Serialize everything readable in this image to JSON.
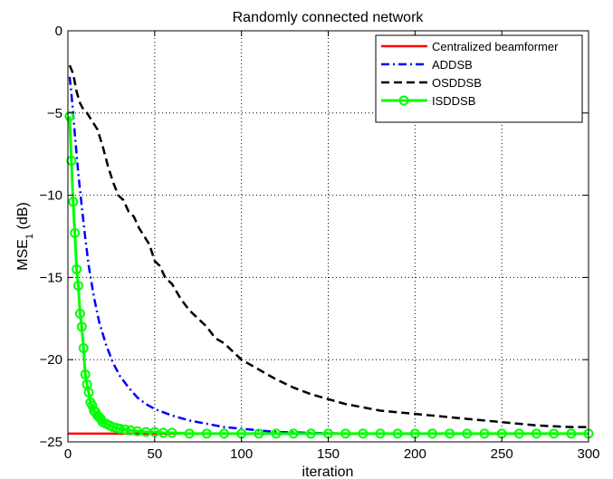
{
  "chart_data": {
    "type": "line",
    "title": "Randomly connected network",
    "xlabel": "iteration",
    "ylabel": "MSE",
    "ylabel_subscript": "1",
    "ylabel_unit": " (dB)",
    "xlim": [
      0,
      300
    ],
    "ylim": [
      -25,
      0
    ],
    "xticks": [
      0,
      50,
      100,
      150,
      200,
      250,
      300
    ],
    "yticks": [
      0,
      -5,
      -10,
      -15,
      -20,
      -25
    ],
    "xtick_labels": [
      "0",
      "50",
      "100",
      "150",
      "200",
      "250",
      "300"
    ],
    "ytick_labels": [
      "0",
      "−5",
      "−10",
      "−15",
      "−20",
      "−25"
    ],
    "grid": true,
    "legend_position": "top-right",
    "series": [
      {
        "name": "Centralized beamformer",
        "color": "#ff0000",
        "style": "solid",
        "x": [
          0,
          300
        ],
        "y": [
          -24.5,
          -24.5
        ]
      },
      {
        "name": "ADDSB",
        "color": "#0000ff",
        "style": "dashdot",
        "x": [
          1,
          2,
          3,
          4,
          5,
          6,
          8,
          10,
          12,
          15,
          18,
          22,
          26,
          30,
          35,
          40,
          45,
          50,
          60,
          70,
          80,
          90,
          100,
          110,
          120,
          140,
          160,
          200,
          250,
          300
        ],
        "y": [
          -2.8,
          -3.8,
          -5.0,
          -6.3,
          -7.5,
          -8.7,
          -10.7,
          -12.6,
          -14.3,
          -16.2,
          -17.7,
          -19.1,
          -20.2,
          -21.0,
          -21.7,
          -22.3,
          -22.7,
          -23.0,
          -23.4,
          -23.7,
          -23.9,
          -24.1,
          -24.2,
          -24.3,
          -24.4,
          -24.45,
          -24.5,
          -24.5,
          -24.5,
          -24.5
        ]
      },
      {
        "name": "OSDDSB",
        "color": "#000000",
        "style": "dashed",
        "x": [
          1,
          3,
          5,
          7,
          9,
          11,
          14,
          17,
          20,
          23,
          26,
          29,
          32,
          35,
          38,
          41,
          44,
          47,
          50,
          53,
          56,
          60,
          65,
          70,
          75,
          80,
          85,
          90,
          95,
          100,
          110,
          120,
          130,
          140,
          150,
          160,
          170,
          180,
          190,
          200,
          210,
          220,
          230,
          240,
          250,
          260,
          270,
          280,
          290,
          300
        ],
        "y": [
          -2.1,
          -2.6,
          -3.7,
          -4.4,
          -4.8,
          -5.0,
          -5.5,
          -6.0,
          -7.0,
          -8.2,
          -9.2,
          -10.0,
          -10.3,
          -11.0,
          -11.3,
          -12.0,
          -12.5,
          -13.0,
          -14.0,
          -14.3,
          -15.0,
          -15.4,
          -16.3,
          -17.0,
          -17.5,
          -18.0,
          -18.7,
          -19.0,
          -19.5,
          -20.0,
          -20.6,
          -21.2,
          -21.7,
          -22.1,
          -22.4,
          -22.7,
          -22.9,
          -23.1,
          -23.2,
          -23.3,
          -23.4,
          -23.5,
          -23.6,
          -23.7,
          -23.8,
          -23.9,
          -24.0,
          -24.05,
          -24.1,
          -24.1
        ]
      },
      {
        "name": "ISDDSB",
        "color": "#00ff00",
        "style": "solid-circle",
        "x": [
          1,
          2,
          3,
          4,
          5,
          6,
          7,
          8,
          9,
          10,
          11,
          12,
          13,
          14,
          15,
          16,
          17,
          18,
          19,
          20,
          22,
          24,
          26,
          28,
          30,
          33,
          36,
          40,
          45,
          50,
          55,
          60,
          70,
          80,
          90,
          100,
          110,
          120,
          130,
          140,
          150,
          160,
          170,
          180,
          190,
          200,
          210,
          220,
          230,
          240,
          250,
          260,
          270,
          280,
          290,
          300
        ],
        "y": [
          -5.2,
          -7.9,
          -10.4,
          -12.3,
          -14.5,
          -15.5,
          -17.2,
          -18.0,
          -19.3,
          -20.9,
          -21.5,
          -22.0,
          -22.6,
          -22.8,
          -23.1,
          -23.2,
          -23.4,
          -23.5,
          -23.6,
          -23.8,
          -23.9,
          -24.0,
          -24.1,
          -24.15,
          -24.2,
          -24.25,
          -24.3,
          -24.35,
          -24.4,
          -24.4,
          -24.45,
          -24.45,
          -24.5,
          -24.5,
          -24.5,
          -24.5,
          -24.5,
          -24.5,
          -24.5,
          -24.5,
          -24.5,
          -24.5,
          -24.5,
          -24.5,
          -24.5,
          -24.5,
          -24.5,
          -24.5,
          -24.5,
          -24.5,
          -24.5,
          -24.5,
          -24.5,
          -24.5,
          -24.5,
          -24.5
        ]
      }
    ]
  }
}
